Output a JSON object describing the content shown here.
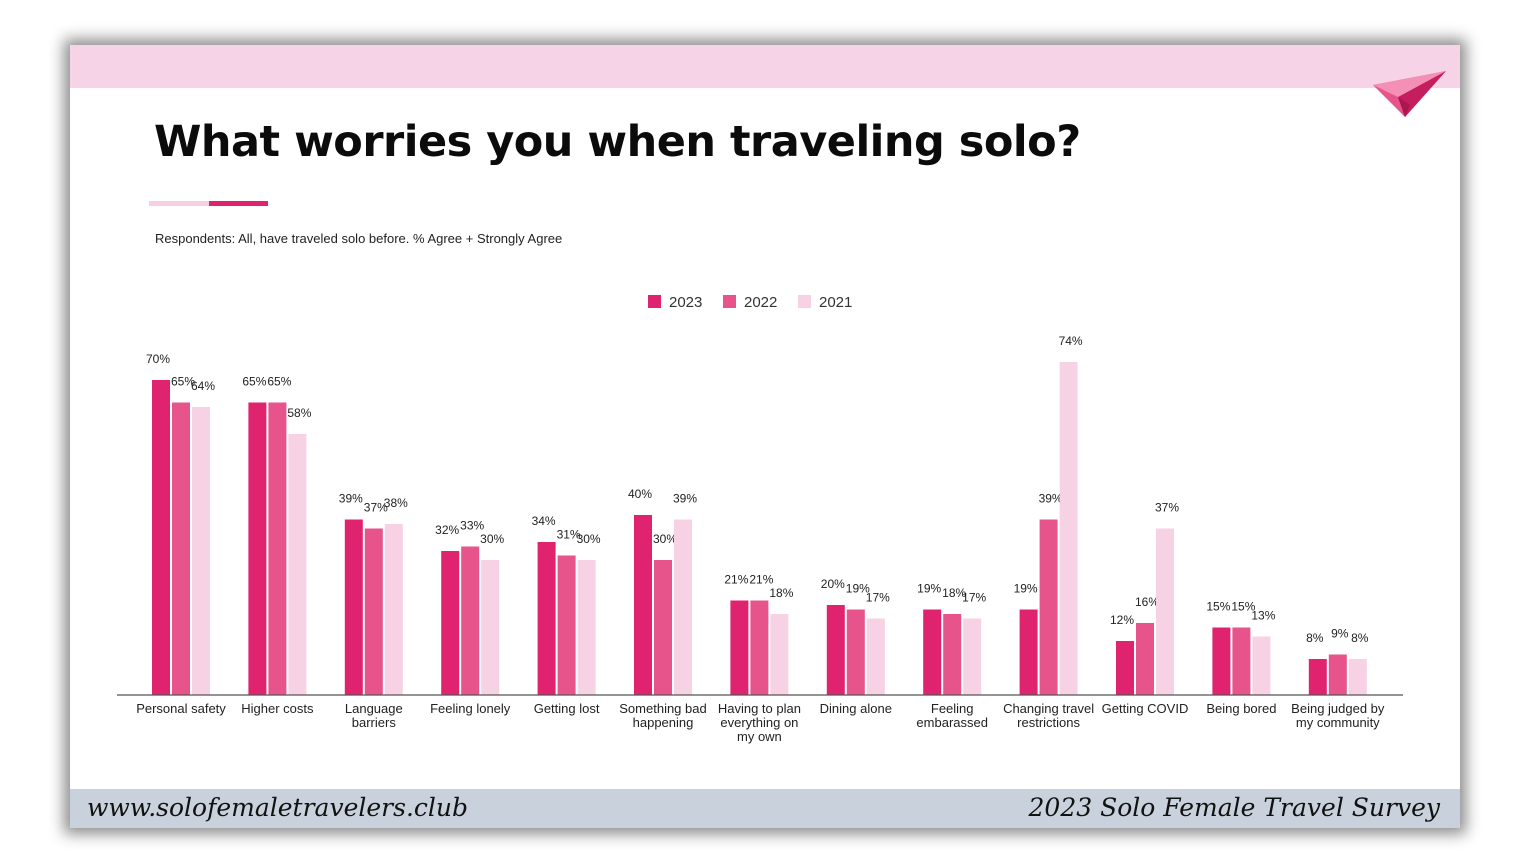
{
  "slide": {
    "title": "What worries you when traveling solo?",
    "subtitle": "Respondents: All, have traveled solo before. % Agree + Strongly Agree"
  },
  "footer": {
    "website": "www.solofemaletravelers.club",
    "survey_name": "2023 Solo Female Travel Survey"
  },
  "colors": {
    "band": "#f6d3e6",
    "series_2023": "#e0236f",
    "series_2022": "#e7548b",
    "series_2021": "#f7d2e4",
    "footer_band": "#c9d2dc"
  },
  "icons": [
    "paper-plane-icon"
  ],
  "chart_data": {
    "type": "bar",
    "title": "",
    "xlabel": "",
    "ylabel": "",
    "ylim": [
      0,
      80
    ],
    "grid": false,
    "legend_position": "top-center",
    "categories": [
      "Personal safety",
      "Higher costs",
      "Language barriers",
      "Feeling lonely",
      "Getting lost",
      "Something bad happening",
      "Having to plan everything on my own",
      "Dining alone",
      "Feeling embarassed",
      "Changing travel restrictions",
      "Getting COVID",
      "Being bored",
      "Being judged by my community"
    ],
    "series": [
      {
        "name": "2023",
        "color": "#e0236f",
        "values": [
          70,
          65,
          39,
          32,
          34,
          40,
          21,
          20,
          19,
          19,
          12,
          15,
          8
        ]
      },
      {
        "name": "2022",
        "color": "#e7548b",
        "values": [
          65,
          65,
          37,
          33,
          31,
          30,
          21,
          19,
          18,
          39,
          16,
          15,
          9
        ]
      },
      {
        "name": "2021",
        "color": "#f7d2e4",
        "values": [
          64,
          58,
          38,
          30,
          30,
          39,
          18,
          17,
          17,
          74,
          37,
          13,
          8
        ]
      }
    ]
  }
}
